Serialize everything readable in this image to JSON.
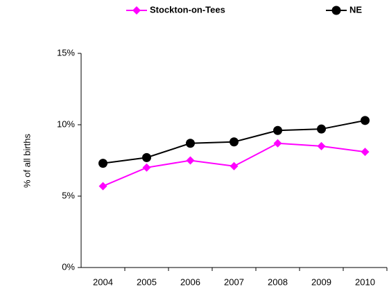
{
  "chart_data": {
    "type": "line",
    "y_label": "% of all births",
    "categories": [
      "2004",
      "2005",
      "2006",
      "2007",
      "2008",
      "2009",
      "2010"
    ],
    "series": [
      {
        "name": "Stockton-on-Tees",
        "color": "#ff00ff",
        "marker": "diamond",
        "values": [
          5.7,
          7.0,
          7.5,
          7.1,
          8.7,
          8.5,
          8.1
        ]
      },
      {
        "name": "NE",
        "color": "#000000",
        "marker": "circle",
        "values": [
          7.3,
          7.7,
          8.7,
          8.8,
          9.6,
          9.7,
          10.3
        ]
      }
    ],
    "ylim": [
      0,
      15
    ],
    "yticks": [
      {
        "value": 0,
        "label": "0%"
      },
      {
        "value": 5,
        "label": "5%"
      },
      {
        "value": 10,
        "label": "10%"
      },
      {
        "value": 15,
        "label": "15%"
      }
    ],
    "grid": false
  }
}
